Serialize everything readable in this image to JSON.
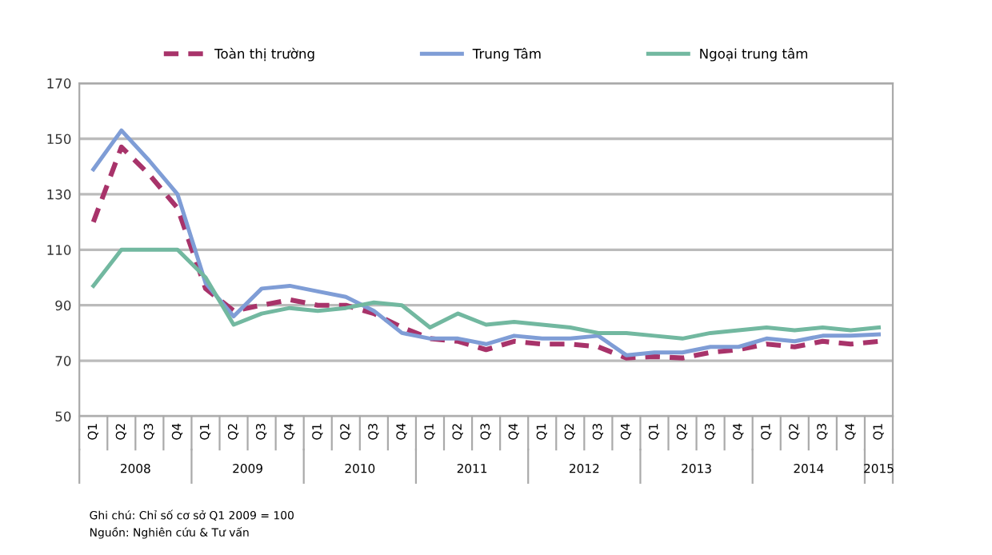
{
  "chart_data": {
    "type": "line",
    "categories": [
      "Q1",
      "Q2",
      "Q3",
      "Q4",
      "Q1",
      "Q2",
      "Q3",
      "Q4",
      "Q1",
      "Q2",
      "Q3",
      "Q4",
      "Q1",
      "Q2",
      "Q3",
      "Q4",
      "Q1",
      "Q2",
      "Q3",
      "Q4",
      "Q1",
      "Q2",
      "Q3",
      "Q4",
      "Q1",
      "Q2",
      "Q3",
      "Q4",
      "Q1"
    ],
    "series": [
      {
        "name": "Toàn thị trường",
        "color": "#a8336a",
        "line_style": "dashed",
        "values": [
          120,
          147,
          137,
          125,
          96,
          88,
          90,
          92,
          90,
          90,
          87,
          82,
          78,
          77,
          74,
          77,
          76,
          76,
          75,
          71,
          71.5,
          71,
          73,
          74,
          76,
          75,
          77,
          76,
          77
        ]
      },
      {
        "name": "Trung Tâm",
        "color": "#7f9dd6",
        "line_style": "solid",
        "values": [
          139,
          153,
          142,
          130,
          98,
          86,
          96,
          97,
          95,
          93,
          88,
          80,
          78,
          78,
          76,
          79,
          78,
          78,
          79,
          72,
          73,
          73,
          75,
          75,
          78,
          77,
          79,
          79,
          79.5
        ]
      },
      {
        "name": "Ngoại trung tâm",
        "color": "#72b8a0",
        "line_style": "solid",
        "values": [
          97,
          110,
          110,
          110,
          100,
          83,
          87,
          89,
          88,
          89,
          91,
          90,
          82,
          87,
          83,
          84,
          83,
          82,
          80,
          80,
          79,
          78,
          80,
          81,
          82,
          81,
          82,
          81,
          82
        ]
      }
    ],
    "ylim": [
      50,
      170
    ],
    "yticks": [
      50,
      70,
      90,
      110,
      130,
      150,
      170
    ],
    "grid": "y",
    "legend": "top",
    "marker": "none",
    "annotations": [
      "2008",
      "2009",
      "2010",
      "2011",
      "2012",
      "2013",
      "2014",
      "2015",
      "Ghi chú: Chỉ số cơ sở Q1 2009 = 100",
      "Nguồn: Nghiên cứu & Tư vấn"
    ]
  }
}
